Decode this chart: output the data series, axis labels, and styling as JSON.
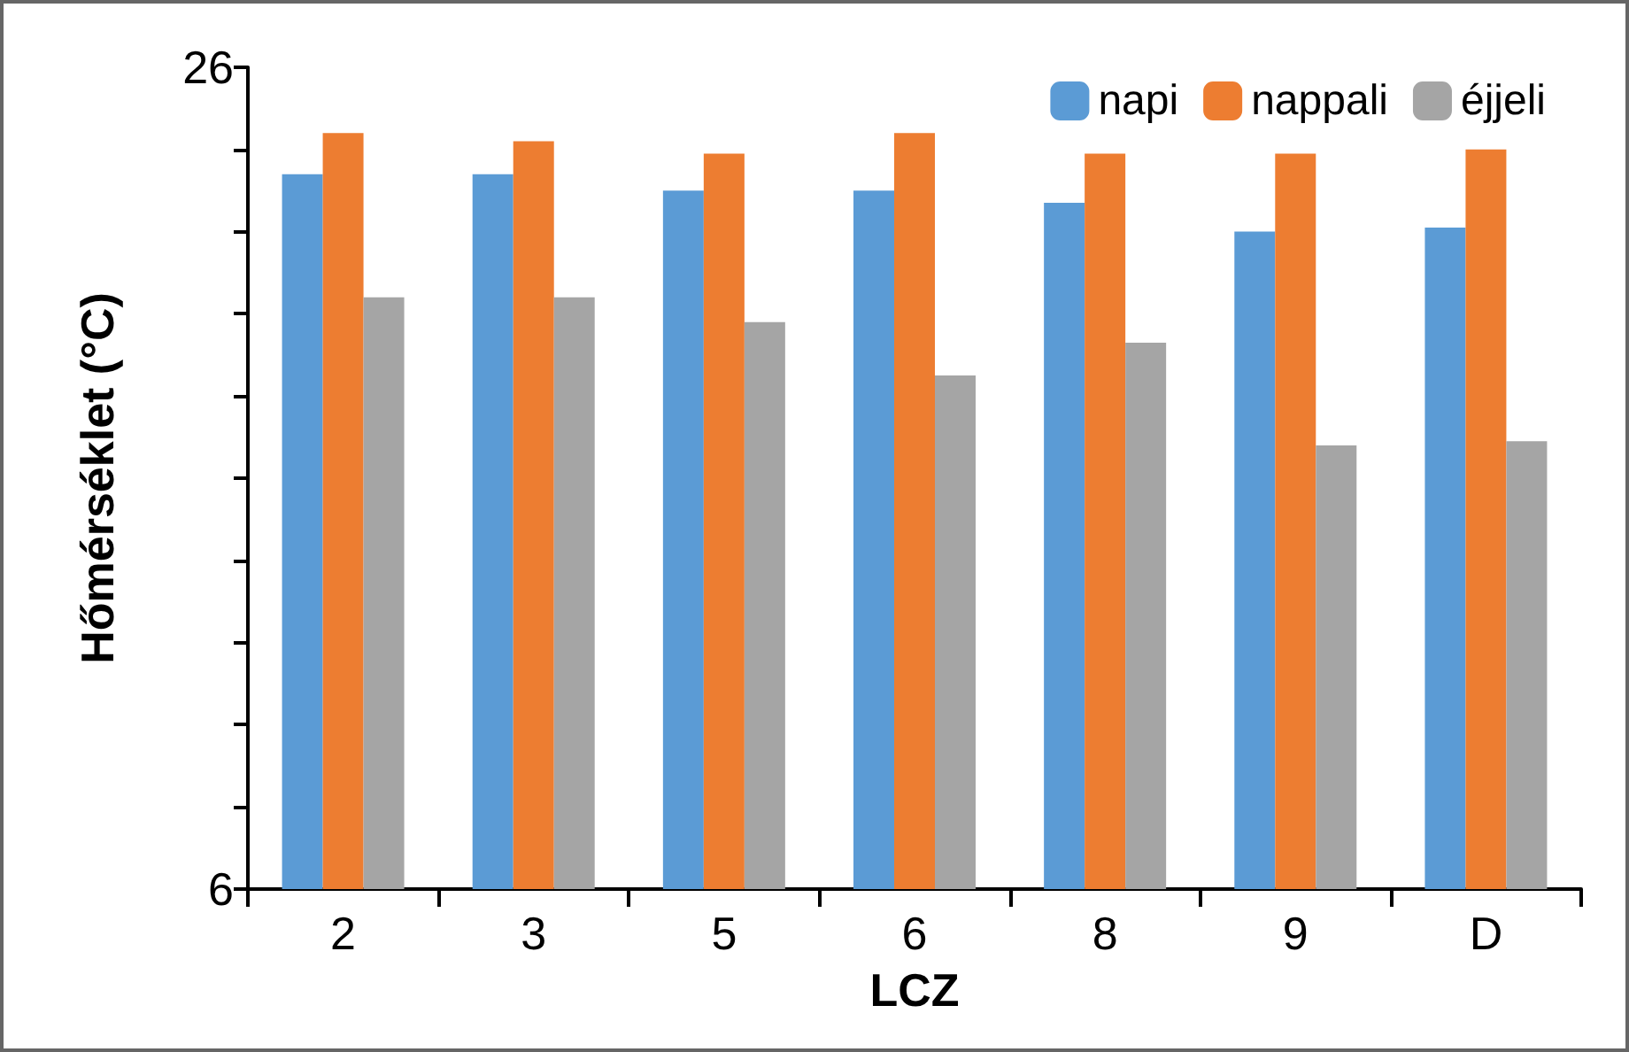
{
  "chart_data": {
    "type": "bar",
    "xlabel": "LCZ",
    "ylabel": "Hőmérséklet (°C)",
    "categories": [
      "2",
      "3",
      "5",
      "6",
      "8",
      "9",
      "D"
    ],
    "series": [
      {
        "name": "napi",
        "color": "#5b9bd5",
        "values": [
          23.4,
          23.4,
          23.0,
          23.0,
          22.7,
          22.0,
          22.1
        ]
      },
      {
        "name": "nappali",
        "color": "#ed7d31",
        "values": [
          24.4,
          24.2,
          23.9,
          24.4,
          23.9,
          23.9,
          24.0
        ]
      },
      {
        "name": "éjjeli",
        "color": "#a5a5a5",
        "values": [
          20.4,
          20.4,
          19.8,
          18.5,
          19.3,
          16.8,
          16.9
        ]
      }
    ],
    "ylim": [
      6,
      26
    ],
    "yticks": [
      6,
      {
        "value": 8,
        "label": null
      },
      {
        "value": 10,
        "label": null
      },
      {
        "value": 12,
        "label": null
      },
      {
        "value": 14,
        "label": null
      },
      {
        "value": 16,
        "label": null
      },
      {
        "value": 18,
        "label": null
      },
      {
        "value": 20,
        "label": null
      },
      {
        "value": 22,
        "label": null
      },
      {
        "value": 24,
        "label": null
      },
      26
    ],
    "grid": false,
    "legend": "top right"
  }
}
